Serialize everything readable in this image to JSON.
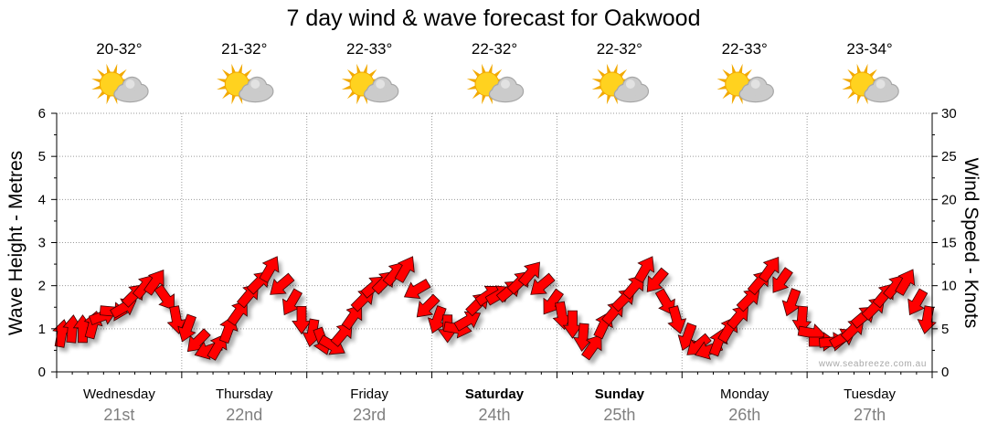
{
  "watermark": "www.seabreeze.com.au",
  "forecast": [
    {
      "temp": "20-32°",
      "icon": "partly-cloudy-icon"
    },
    {
      "temp": "21-32°",
      "icon": "partly-cloudy-icon"
    },
    {
      "temp": "22-33°",
      "icon": "partly-cloudy-icon"
    },
    {
      "temp": "22-32°",
      "icon": "partly-cloudy-icon"
    },
    {
      "temp": "22-32°",
      "icon": "partly-cloudy-icon"
    },
    {
      "temp": "22-33°",
      "icon": "partly-cloudy-icon"
    },
    {
      "temp": "23-34°",
      "icon": "partly-cloudy-icon"
    }
  ],
  "colors": {
    "arrow": "#ff0000",
    "arrow_outline": "#3a0000",
    "shadow": "#000000",
    "grid": "#9a9a9a",
    "axis": "#000000",
    "sun": "#ffd21f",
    "sun_ray": "#f2a900",
    "cloud": "#cbcbcb",
    "cloud_light": "#e2e2e2",
    "cloud_edge": "#a6a6a6"
  },
  "chart_data": {
    "type": "scatter",
    "title": "7 day wind & wave forecast for Oakwood",
    "ylabel": "Wave Height - Metres",
    "y2label": "Wind Speed - Knots",
    "ylim": [
      0,
      6
    ],
    "y2lim": [
      0,
      30
    ],
    "yticks": [
      0,
      1,
      2,
      3,
      4,
      5,
      6
    ],
    "y2ticks": [
      0,
      5,
      10,
      15,
      20,
      25,
      30
    ],
    "grid": true,
    "categories": [
      {
        "day": "Wednesday",
        "date": "21st"
      },
      {
        "day": "Thursday",
        "date": "22nd"
      },
      {
        "day": "Friday",
        "date": "23rd"
      },
      {
        "day": "Saturday",
        "date": "24th"
      },
      {
        "day": "Sunday",
        "date": "25th"
      },
      {
        "day": "Monday",
        "date": "26th"
      },
      {
        "day": "Tuesday",
        "date": "27th"
      }
    ],
    "series": [
      {
        "wind_knots": [
          [
            4.5,
            5,
            5,
            5.5,
            6.5,
            7,
            7.5,
            9,
            10,
            10.5,
            8.5,
            6
          ],
          [
            5,
            3.5,
            2.5,
            3,
            5,
            7,
            9,
            10.5,
            12,
            10,
            8,
            6
          ],
          [
            4.5,
            3.5,
            3,
            4.5,
            6.5,
            8.5,
            10,
            10.5,
            11.5,
            12,
            9.5,
            7.5
          ],
          [
            6,
            5,
            5,
            6,
            8,
            9,
            9,
            9.5,
            10.5,
            11.5,
            10,
            8
          ],
          [
            6.5,
            5.5,
            4,
            3,
            5.5,
            7,
            8.5,
            10,
            12,
            10.5,
            8,
            6
          ],
          [
            4,
            3,
            2.5,
            3.5,
            5,
            6.5,
            8.5,
            10.5,
            12,
            10.5,
            8,
            6
          ],
          [
            4.5,
            3.5,
            3.5,
            4,
            5,
            6.5,
            7.5,
            9,
            10,
            10.5,
            8,
            6
          ]
        ],
        "wind_toward_deg": [
          [
            10,
            5,
            0,
            15,
            70,
            95,
            60,
            45,
            40,
            35,
            145,
            170
          ],
          [
            200,
            225,
            250,
            30,
            20,
            35,
            40,
            45,
            30,
            230,
            210,
            180
          ],
          [
            190,
            160,
            120,
            40,
            35,
            45,
            50,
            45,
            40,
            30,
            240,
            225
          ],
          [
            200,
            180,
            100,
            60,
            45,
            55,
            60,
            50,
            45,
            40,
            230,
            215
          ],
          [
            170,
            180,
            185,
            35,
            25,
            40,
            45,
            40,
            30,
            220,
            150,
            165
          ],
          [
            200,
            230,
            250,
            20,
            30,
            40,
            45,
            40,
            35,
            215,
            200,
            185
          ],
          [
            100,
            90,
            85,
            60,
            45,
            50,
            45,
            40,
            40,
            30,
            210,
            190
          ]
        ]
      }
    ]
  }
}
